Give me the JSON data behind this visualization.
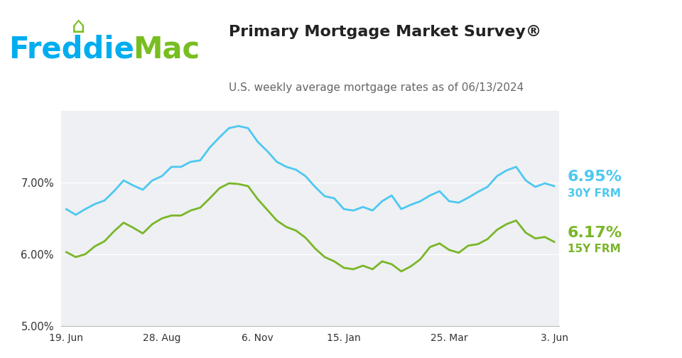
{
  "title": "Primary Mortgage Market Survey®",
  "subtitle": "U.S. weekly average mortgage rates as of 06/13/2024",
  "freddie_blue": "#00adef",
  "freddie_green": "#78be20",
  "line_blue": "#4dc8f0",
  "line_green": "#7ab628",
  "plot_bg": "#eef0f3",
  "ylim": [
    5.0,
    8.0
  ],
  "xlabel_ticks": [
    "19. Jun",
    "28. Aug",
    "6. Nov",
    "15. Jan",
    "25. Mar",
    "3. Jun"
  ],
  "xtick_pos": [
    0,
    10,
    20,
    29,
    40,
    51
  ],
  "rate_30y_label": "6.95%",
  "rate_30y_sublabel": "30Y FRM",
  "rate_15y_label": "6.17%",
  "rate_15y_sublabel": "15Y FRM",
  "y_30y": [
    6.63,
    6.55,
    6.63,
    6.7,
    6.75,
    6.88,
    7.03,
    6.96,
    6.9,
    7.03,
    7.09,
    7.22,
    7.22,
    7.29,
    7.31,
    7.49,
    7.63,
    7.76,
    7.79,
    7.76,
    7.57,
    7.44,
    7.29,
    7.22,
    7.18,
    7.09,
    6.94,
    6.81,
    6.78,
    6.63,
    6.61,
    6.66,
    6.61,
    6.74,
    6.82,
    6.63,
    6.69,
    6.74,
    6.82,
    6.88,
    6.74,
    6.72,
    6.79,
    6.87,
    6.94,
    7.09,
    7.17,
    7.22,
    7.03,
    6.94,
    6.99,
    6.95
  ],
  "y_15y": [
    6.03,
    5.96,
    6.0,
    6.11,
    6.18,
    6.32,
    6.44,
    6.37,
    6.29,
    6.42,
    6.5,
    6.54,
    6.54,
    6.61,
    6.65,
    6.78,
    6.92,
    6.99,
    6.98,
    6.95,
    6.77,
    6.62,
    6.47,
    6.38,
    6.33,
    6.23,
    6.08,
    5.96,
    5.9,
    5.81,
    5.79,
    5.84,
    5.79,
    5.9,
    5.86,
    5.76,
    5.83,
    5.93,
    6.1,
    6.15,
    6.06,
    6.02,
    6.12,
    6.14,
    6.21,
    6.34,
    6.42,
    6.47,
    6.3,
    6.22,
    6.24,
    6.17
  ]
}
